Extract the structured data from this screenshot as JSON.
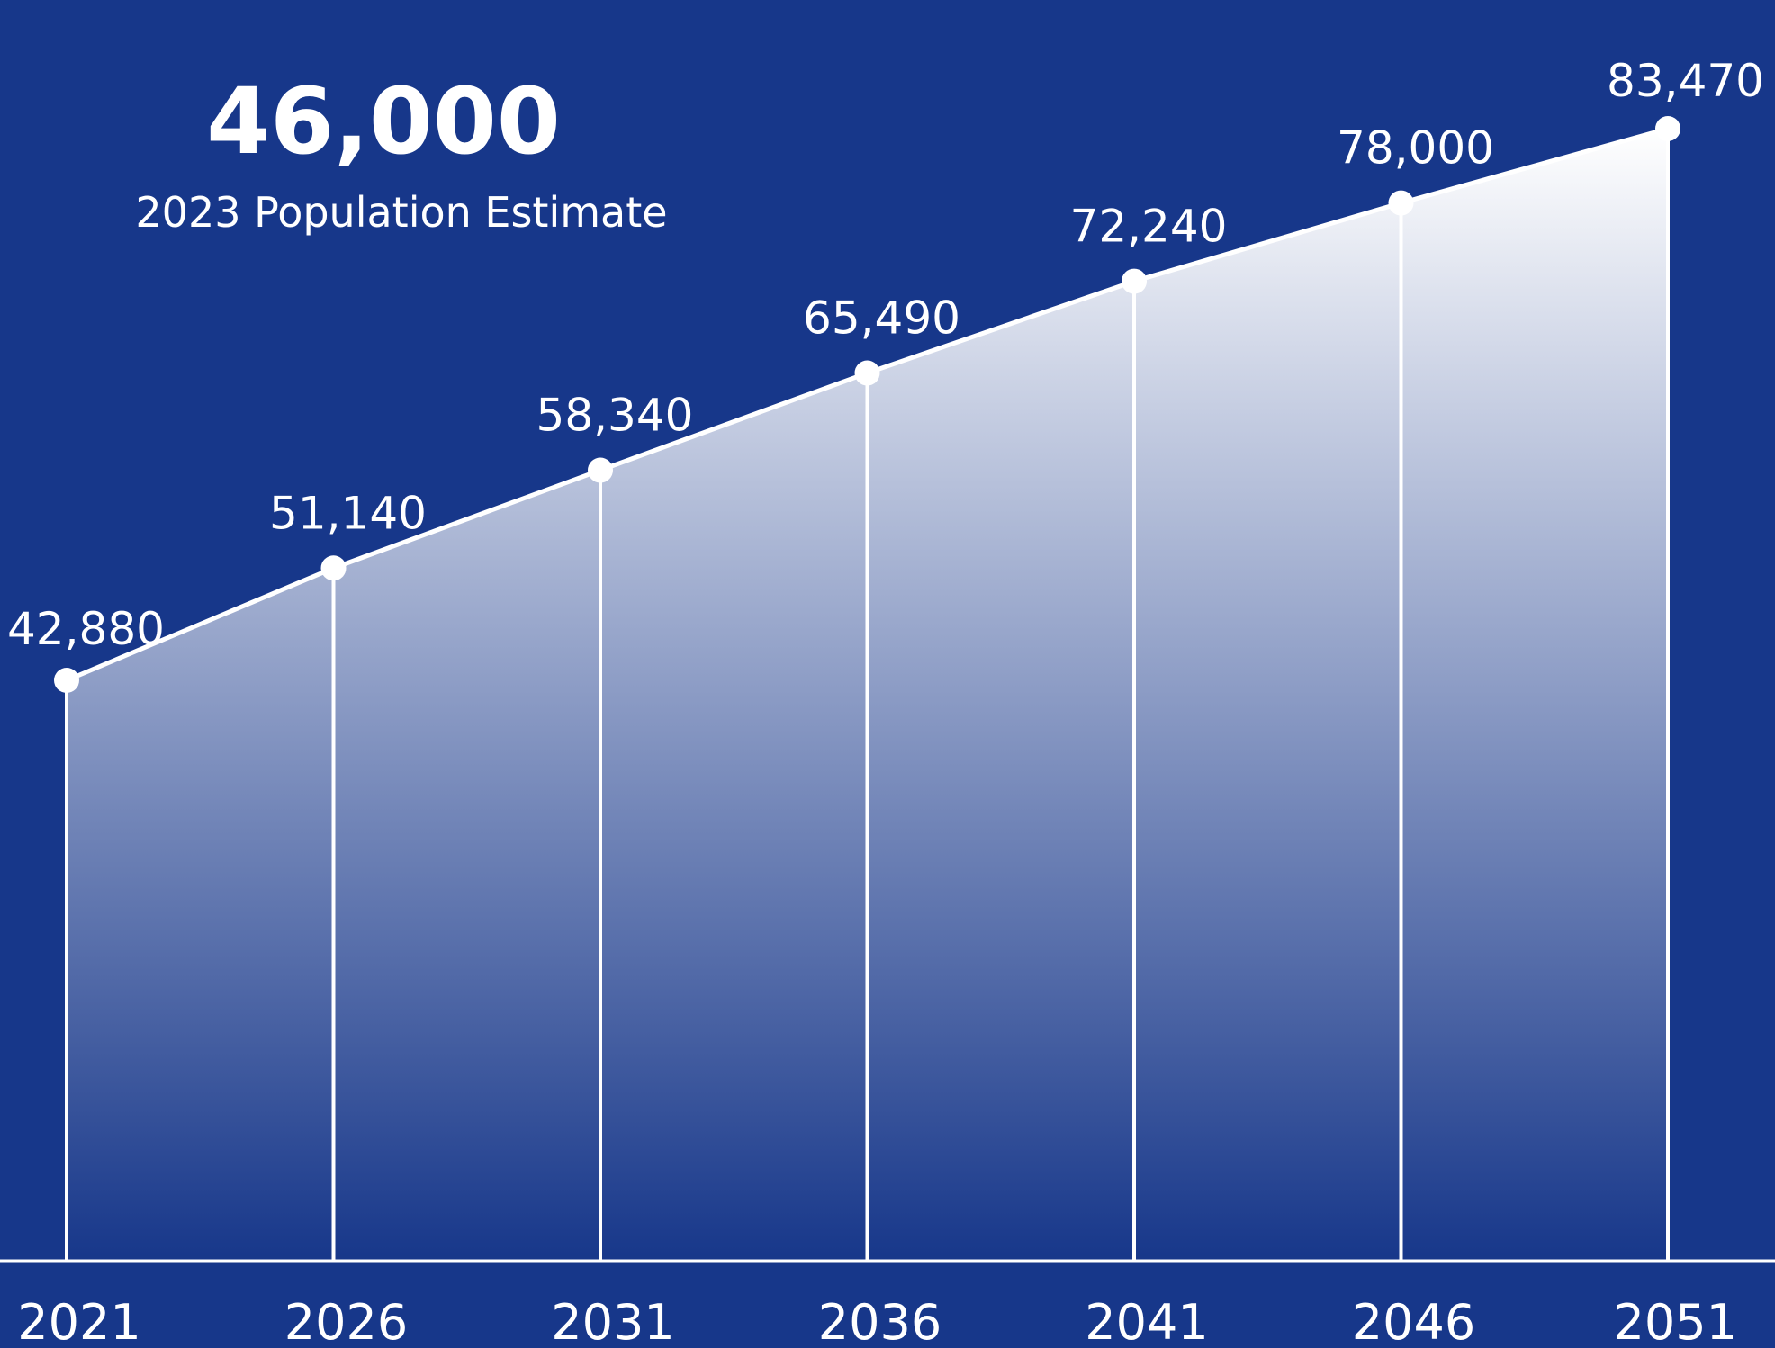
{
  "headline": {
    "value": "46,000",
    "caption": "2023 Population Estimate"
  },
  "colors": {
    "background": "#17378a",
    "line": "#ffffff",
    "fill_top": "#ffffff",
    "fill_bottom": "#17378a"
  },
  "chart_data": {
    "type": "area",
    "x": [
      "2021",
      "2026",
      "2031",
      "2036",
      "2041",
      "2046",
      "2051"
    ],
    "series": [
      {
        "values": [
          42880,
          51140,
          58340,
          65490,
          72240,
          78000,
          83470
        ],
        "labels": [
          "42,880",
          "51,140",
          "58,340",
          "65,490",
          "72,240",
          "78,000",
          "83,470"
        ]
      }
    ],
    "title": "",
    "xlabel": "",
    "ylabel": "",
    "ylim": [
      0,
      86000
    ],
    "grid": false,
    "legend": "none"
  }
}
